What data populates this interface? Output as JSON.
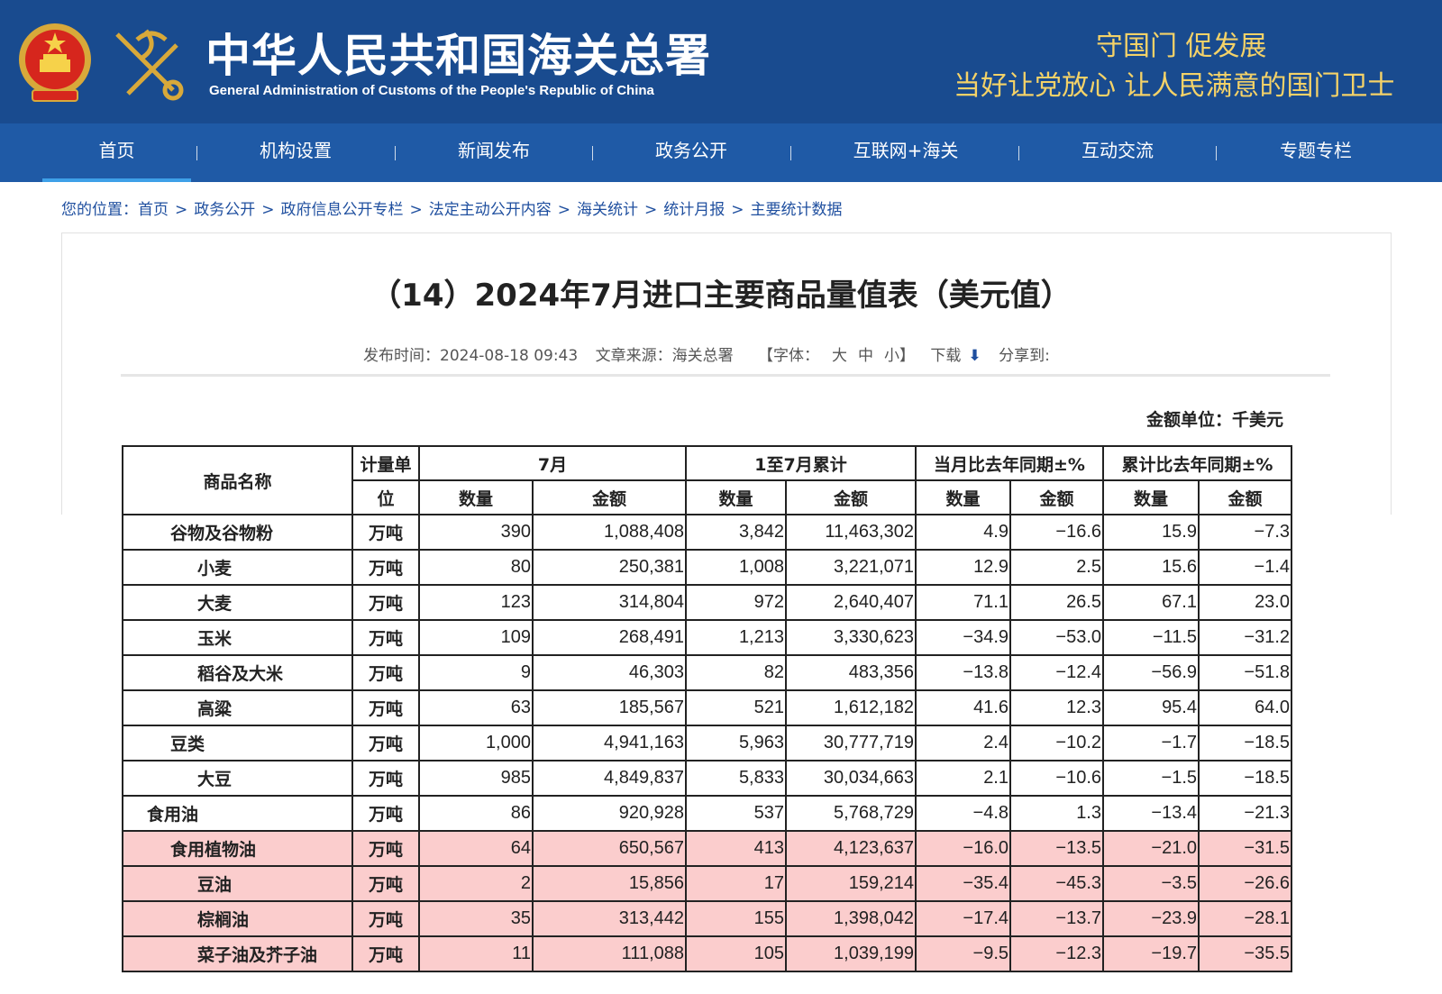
{
  "header": {
    "site_name": "中华人民共和国海关总署",
    "site_name_en": "General Administration of Customs of the People's Republic of China",
    "slogan_line1": "守国门    促发展",
    "slogan_line2": "当好让党放心    让人民满意的国门卫士"
  },
  "nav": {
    "items": [
      {
        "label": "首页"
      },
      {
        "label": "机构设置"
      },
      {
        "label": "新闻发布"
      },
      {
        "label": "政务公开"
      },
      {
        "label": "互联网+海关"
      },
      {
        "label": "互动交流"
      },
      {
        "label": "专题专栏"
      }
    ]
  },
  "breadcrumb": {
    "prefix": "您的位置：",
    "items": [
      "首页",
      "政务公开",
      "政府信息公开专栏",
      "法定主动公开内容",
      "海关统计",
      "统计月报",
      "主要统计数据"
    ],
    "separator": ">"
  },
  "article": {
    "title": "（14）2024年7月进口主要商品量值表（美元值）",
    "publish_time": "发布时间：2024-08-18 09:43",
    "source": "文章来源：海关总署",
    "font_label": "【字体：",
    "font_large": "大",
    "font_medium": "中",
    "font_small": "小】",
    "download_label": "下载",
    "share_label": "分享到:"
  },
  "table": {
    "unit_note": "金额单位：千美元",
    "headers": {
      "name": "商品名称",
      "unit_top": "计量单",
      "unit_bottom": "位",
      "month": "7月",
      "ytd": "1至7月累计",
      "month_yoy": "当月比去年同期±%",
      "ytd_yoy": "累计比去年同期±%",
      "qty": "数量",
      "amount": "金额"
    },
    "rows": [
      {
        "name": "谷物及谷物粉",
        "unit": "万吨",
        "m_qty": "390",
        "m_amt": "1,088,408",
        "y_qty": "3,842",
        "y_amt": "11,463,302",
        "mq_pct": "4.9",
        "ma_pct": "−16.6",
        "yq_pct": "15.9",
        "ya_pct": "−7.3"
      },
      {
        "name": "小麦",
        "unit": "万吨",
        "m_qty": "80",
        "m_amt": "250,381",
        "y_qty": "1,008",
        "y_amt": "3,221,071",
        "mq_pct": "12.9",
        "ma_pct": "2.5",
        "yq_pct": "15.6",
        "ya_pct": "−1.4"
      },
      {
        "name": "大麦",
        "unit": "万吨",
        "m_qty": "123",
        "m_amt": "314,804",
        "y_qty": "972",
        "y_amt": "2,640,407",
        "mq_pct": "71.1",
        "ma_pct": "26.5",
        "yq_pct": "67.1",
        "ya_pct": "23.0"
      },
      {
        "name": "玉米",
        "unit": "万吨",
        "m_qty": "109",
        "m_amt": "268,491",
        "y_qty": "1,213",
        "y_amt": "3,330,623",
        "mq_pct": "−34.9",
        "ma_pct": "−53.0",
        "yq_pct": "−11.5",
        "ya_pct": "−31.2"
      },
      {
        "name": "稻谷及大米",
        "unit": "万吨",
        "m_qty": "9",
        "m_amt": "46,303",
        "y_qty": "82",
        "y_amt": "483,356",
        "mq_pct": "−13.8",
        "ma_pct": "−12.4",
        "yq_pct": "−56.9",
        "ya_pct": "−51.8"
      },
      {
        "name": "高粱",
        "unit": "万吨",
        "m_qty": "63",
        "m_amt": "185,567",
        "y_qty": "521",
        "y_amt": "1,612,182",
        "mq_pct": "41.6",
        "ma_pct": "12.3",
        "yq_pct": "95.4",
        "ya_pct": "64.0"
      },
      {
        "name": "豆类",
        "unit": "万吨",
        "m_qty": "1,000",
        "m_amt": "4,941,163",
        "y_qty": "5,963",
        "y_amt": "30,777,719",
        "mq_pct": "2.4",
        "ma_pct": "−10.2",
        "yq_pct": "−1.7",
        "ya_pct": "−18.5"
      },
      {
        "name": "大豆",
        "unit": "万吨",
        "m_qty": "985",
        "m_amt": "4,849,837",
        "y_qty": "5,833",
        "y_amt": "30,034,663",
        "mq_pct": "2.1",
        "ma_pct": "−10.6",
        "yq_pct": "−1.5",
        "ya_pct": "−18.5"
      },
      {
        "name": "食用油",
        "unit": "万吨",
        "m_qty": "86",
        "m_amt": "920,928",
        "y_qty": "537",
        "y_amt": "5,768,729",
        "mq_pct": "−4.8",
        "ma_pct": "1.3",
        "yq_pct": "−13.4",
        "ya_pct": "−21.3"
      },
      {
        "name": "食用植物油",
        "unit": "万吨",
        "m_qty": "64",
        "m_amt": "650,567",
        "y_qty": "413",
        "y_amt": "4,123,637",
        "mq_pct": "−16.0",
        "ma_pct": "−13.5",
        "yq_pct": "−21.0",
        "ya_pct": "−31.5"
      },
      {
        "name": "豆油",
        "unit": "万吨",
        "m_qty": "2",
        "m_amt": "15,856",
        "y_qty": "17",
        "y_amt": "159,214",
        "mq_pct": "−35.4",
        "ma_pct": "−45.3",
        "yq_pct": "−3.5",
        "ya_pct": "−26.6"
      },
      {
        "name": "棕榈油",
        "unit": "万吨",
        "m_qty": "35",
        "m_amt": "313,442",
        "y_qty": "155",
        "y_amt": "1,398,042",
        "mq_pct": "−17.4",
        "ma_pct": "−13.7",
        "yq_pct": "−23.9",
        "ya_pct": "−28.1"
      },
      {
        "name": "菜子油及芥子油",
        "unit": "万吨",
        "m_qty": "11",
        "m_amt": "111,088",
        "y_qty": "105",
        "y_amt": "1,039,199",
        "mq_pct": "−9.5",
        "ma_pct": "−12.3",
        "yq_pct": "−19.7",
        "ya_pct": "−35.5"
      }
    ]
  },
  "colors": {
    "header_bg": "#194b8f",
    "nav_bg": "#1f5aa6",
    "slogan": "#f4d268",
    "highlight_row": "#fbcdcd",
    "link": "#1f4f9f"
  }
}
